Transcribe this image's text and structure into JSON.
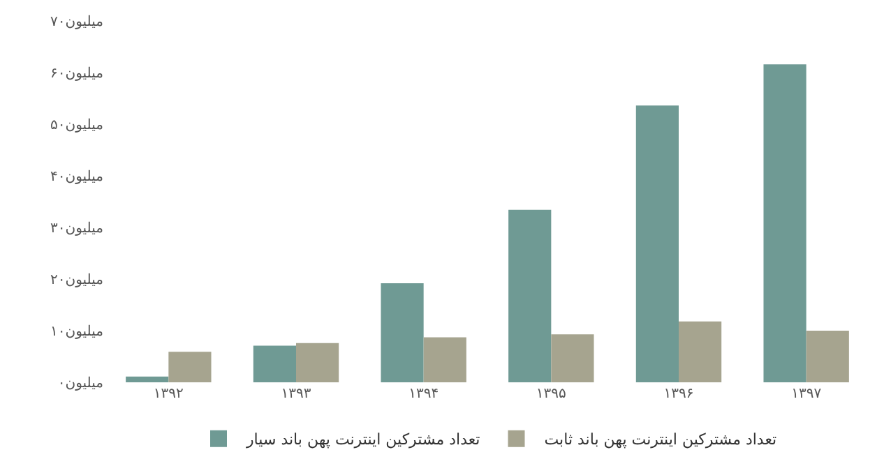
{
  "chart_data": {
    "type": "bar",
    "categories": [
      "۱۳۹۲",
      "۱۳۹۳",
      "۱۳۹۴",
      "۱۳۹۵",
      "۱۳۹۶",
      "۱۳۹۷"
    ],
    "series": [
      {
        "name": "تعداد مشترکین اینترنت پهن باند سیار",
        "color": "#6f9a94",
        "values": [
          1.1,
          7.1,
          19.2,
          33.4,
          53.6,
          61.6
        ]
      },
      {
        "name": "تعداد مشترکین اینترنت پهن باند ثابت",
        "color": "#a6a48f",
        "values": [
          5.9,
          7.6,
          8.7,
          9.3,
          11.8,
          10.0
        ]
      }
    ],
    "ylim": [
      0,
      70
    ],
    "yticks": [
      {
        "value": 0,
        "label": "۰میلیون"
      },
      {
        "value": 10,
        "label": "۱۰میلیون"
      },
      {
        "value": 20,
        "label": "۲۰میلیون"
      },
      {
        "value": 30,
        "label": "۳۰میلیون"
      },
      {
        "value": 40,
        "label": "۴۰میلیون"
      },
      {
        "value": 50,
        "label": "۵۰میلیون"
      },
      {
        "value": 60,
        "label": "۶۰میلیون"
      },
      {
        "value": 70,
        "label": "۷۰میلیون"
      }
    ],
    "grid": false,
    "legend": "bottom"
  }
}
